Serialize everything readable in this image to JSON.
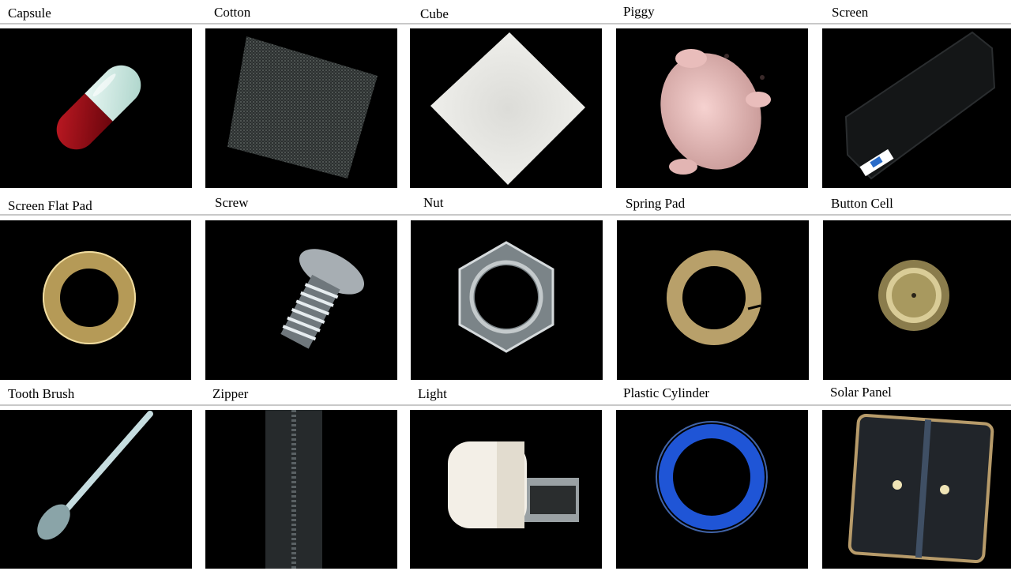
{
  "rows": [
    {
      "items": [
        {
          "label": "Capsule",
          "object": "capsule"
        },
        {
          "label": "Cotton",
          "object": "cotton"
        },
        {
          "label": "Cube",
          "object": "cube"
        },
        {
          "label": "Piggy",
          "object": "piggy"
        },
        {
          "label": "Screen",
          "object": "screen"
        }
      ]
    },
    {
      "items": [
        {
          "label": "Screen Flat Pad",
          "object": "flat-washer"
        },
        {
          "label": "Screw",
          "object": "screw"
        },
        {
          "label": "Nut",
          "object": "hex-nut"
        },
        {
          "label": "Spring Pad",
          "object": "spring-washer"
        },
        {
          "label": "Button Cell",
          "object": "button-cell"
        }
      ]
    },
    {
      "items": [
        {
          "label": "Tooth Brush",
          "object": "toothbrush"
        },
        {
          "label": "Zipper",
          "object": "zipper"
        },
        {
          "label": "Light",
          "object": "usb-light"
        },
        {
          "label": "Plastic Cylinder",
          "object": "blue-ring"
        },
        {
          "label": "Solar Panel",
          "object": "solar-panel"
        }
      ]
    }
  ]
}
